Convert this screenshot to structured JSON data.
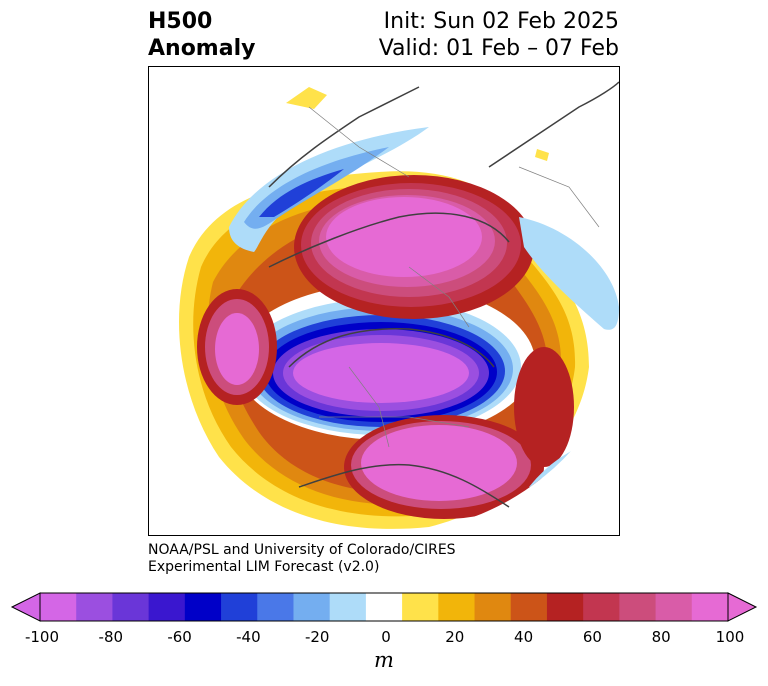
{
  "header": {
    "variable": "H500",
    "type": "Anomaly",
    "init": "Init: Sun 02 Feb 2025",
    "valid": "Valid: 01 Feb – 07 Feb"
  },
  "credit": {
    "line1": "NOAA/PSL and University of Colorado/CIRES",
    "line2": "Experimental LIM Forecast (v2.0)"
  },
  "colorbar": {
    "unit": "m",
    "ticks": [
      "-100",
      "-80",
      "-60",
      "-40",
      "-20",
      "0",
      "20",
      "40",
      "60",
      "80",
      "100"
    ],
    "colors": [
      "#d466e6",
      "#9b4fe0",
      "#6a36d8",
      "#3a17cf",
      "#0000c8",
      "#2040d8",
      "#4a78e8",
      "#74aef0",
      "#aedcf9",
      "#ffffff",
      "#ffe24a",
      "#f2b50a",
      "#e08810",
      "#cc5418",
      "#b52222",
      "#c23650",
      "#cc4d7c",
      "#d95ca8",
      "#e66ad4"
    ],
    "extend_low_color": "#d466e6",
    "extend_high_color": "#e66ad4"
  }
}
